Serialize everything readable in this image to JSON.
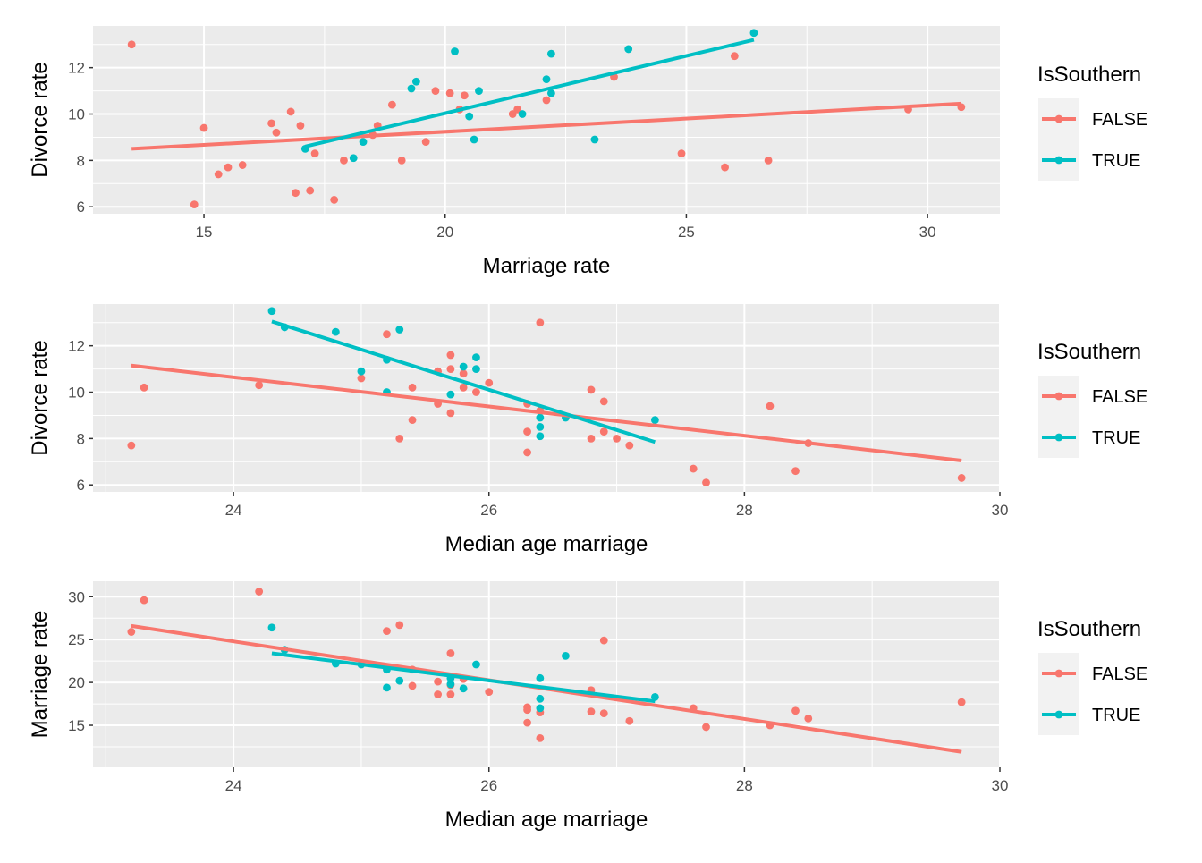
{
  "legend": {
    "title": "IsSouthern",
    "items": [
      {
        "label": "FALSE",
        "color": "#F8766D"
      },
      {
        "label": "TRUE",
        "color": "#00BFC4"
      }
    ]
  },
  "chart_data": [
    {
      "type": "scatter",
      "xlabel": "Marriage rate",
      "ylabel": "Divorce rate",
      "xlim": [
        12.7,
        31.5
      ],
      "ylim": [
        5.7,
        13.8
      ],
      "xticks": [
        15,
        20,
        25,
        30
      ],
      "yticks": [
        6,
        8,
        10,
        12
      ],
      "grid": true,
      "legend_position": "right",
      "series": [
        {
          "name": "FALSE",
          "color": "#F8766D",
          "points": [
            [
              13.5,
              13.0
            ],
            [
              14.8,
              6.1
            ],
            [
              15.0,
              9.4
            ],
            [
              15.3,
              7.4
            ],
            [
              15.5,
              7.7
            ],
            [
              15.8,
              7.8
            ],
            [
              16.4,
              9.6
            ],
            [
              16.5,
              9.2
            ],
            [
              16.8,
              10.1
            ],
            [
              16.9,
              6.6
            ],
            [
              17.0,
              9.5
            ],
            [
              17.2,
              6.7
            ],
            [
              17.3,
              8.3
            ],
            [
              17.7,
              6.3
            ],
            [
              17.9,
              8.0
            ],
            [
              18.5,
              9.1
            ],
            [
              18.6,
              9.5
            ],
            [
              18.9,
              10.4
            ],
            [
              19.1,
              8.0
            ],
            [
              19.6,
              8.8
            ],
            [
              19.8,
              11.0
            ],
            [
              20.1,
              10.9
            ],
            [
              20.3,
              10.2
            ],
            [
              20.4,
              10.8
            ],
            [
              21.4,
              10.0
            ],
            [
              21.5,
              10.2
            ],
            [
              22.1,
              10.6
            ],
            [
              23.5,
              11.6
            ],
            [
              24.9,
              8.3
            ],
            [
              25.8,
              7.7
            ],
            [
              26.0,
              12.5
            ],
            [
              26.7,
              8.0
            ],
            [
              29.6,
              10.2
            ],
            [
              30.7,
              10.3
            ]
          ],
          "fit": [
            [
              13.5,
              8.5
            ],
            [
              30.7,
              10.45
            ]
          ]
        },
        {
          "name": "TRUE",
          "color": "#00BFC4",
          "points": [
            [
              17.1,
              8.5
            ],
            [
              18.1,
              8.1
            ],
            [
              18.3,
              8.8
            ],
            [
              19.3,
              11.1
            ],
            [
              19.4,
              11.4
            ],
            [
              20.2,
              12.7
            ],
            [
              20.5,
              9.9
            ],
            [
              20.6,
              8.9
            ],
            [
              20.7,
              11.0
            ],
            [
              21.6,
              10.0
            ],
            [
              22.1,
              11.5
            ],
            [
              22.2,
              12.6
            ],
            [
              22.2,
              10.9
            ],
            [
              23.1,
              8.9
            ],
            [
              23.8,
              12.8
            ],
            [
              26.4,
              13.5
            ]
          ],
          "fit": [
            [
              17.1,
              8.6
            ],
            [
              26.4,
              13.2
            ]
          ]
        }
      ]
    },
    {
      "type": "scatter",
      "xlabel": "Median age marriage",
      "ylabel": "Divorce rate",
      "xlim": [
        22.9,
        30.0
      ],
      "ylim": [
        5.7,
        13.8
      ],
      "xticks": [
        24,
        26,
        28,
        30
      ],
      "yticks": [
        6,
        8,
        10,
        12
      ],
      "grid": true,
      "legend_position": "right",
      "series": [
        {
          "name": "FALSE",
          "color": "#F8766D",
          "points": [
            [
              23.2,
              7.7
            ],
            [
              23.3,
              10.2
            ],
            [
              24.2,
              10.3
            ],
            [
              25.0,
              10.6
            ],
            [
              25.2,
              12.5
            ],
            [
              25.3,
              8.0
            ],
            [
              25.4,
              8.8
            ],
            [
              25.4,
              10.2
            ],
            [
              25.6,
              9.5
            ],
            [
              25.6,
              10.9
            ],
            [
              25.7,
              11.6
            ],
            [
              25.7,
              11.0
            ],
            [
              25.7,
              9.1
            ],
            [
              25.8,
              10.2
            ],
            [
              25.8,
              10.8
            ],
            [
              25.9,
              10.0
            ],
            [
              26.0,
              10.4
            ],
            [
              26.3,
              7.4
            ],
            [
              26.3,
              8.3
            ],
            [
              26.3,
              9.5
            ],
            [
              26.4,
              9.2
            ],
            [
              26.4,
              13.0
            ],
            [
              26.8,
              8.0
            ],
            [
              26.8,
              10.1
            ],
            [
              26.9,
              8.3
            ],
            [
              26.9,
              9.6
            ],
            [
              27.0,
              8.0
            ],
            [
              27.1,
              7.7
            ],
            [
              27.6,
              6.7
            ],
            [
              27.7,
              6.1
            ],
            [
              28.2,
              9.4
            ],
            [
              28.4,
              6.6
            ],
            [
              28.5,
              7.8
            ],
            [
              29.7,
              6.3
            ]
          ],
          "fit": [
            [
              23.2,
              11.15
            ],
            [
              29.7,
              7.05
            ]
          ]
        },
        {
          "name": "TRUE",
          "color": "#00BFC4",
          "points": [
            [
              24.3,
              13.5
            ],
            [
              24.4,
              12.8
            ],
            [
              24.8,
              12.6
            ],
            [
              25.0,
              10.9
            ],
            [
              25.2,
              11.4
            ],
            [
              25.2,
              10.0
            ],
            [
              25.3,
              12.7
            ],
            [
              25.7,
              9.9
            ],
            [
              25.8,
              11.1
            ],
            [
              25.9,
              11.5
            ],
            [
              25.9,
              11.0
            ],
            [
              26.4,
              8.9
            ],
            [
              26.4,
              8.5
            ],
            [
              26.4,
              8.1
            ],
            [
              26.6,
              8.9
            ],
            [
              27.3,
              8.8
            ]
          ],
          "fit": [
            [
              24.3,
              13.05
            ],
            [
              27.3,
              7.85
            ]
          ]
        }
      ]
    },
    {
      "type": "scatter",
      "xlabel": "Median age marriage",
      "ylabel": "Marriage rate",
      "xlim": [
        22.9,
        30.0
      ],
      "ylim": [
        10.1,
        31.8
      ],
      "xticks": [
        24,
        26,
        28,
        30
      ],
      "yticks": [
        15,
        20,
        25,
        30
      ],
      "grid": true,
      "legend_position": "right",
      "series": [
        {
          "name": "FALSE",
          "color": "#F8766D",
          "points": [
            [
              23.2,
              25.9
            ],
            [
              23.3,
              29.6
            ],
            [
              24.2,
              30.6
            ],
            [
              25.2,
              26.0
            ],
            [
              25.3,
              26.7
            ],
            [
              25.4,
              21.5
            ],
            [
              25.4,
              19.6
            ],
            [
              25.6,
              20.1
            ],
            [
              25.6,
              18.6
            ],
            [
              25.7,
              23.4
            ],
            [
              25.7,
              19.7
            ],
            [
              25.7,
              18.6
            ],
            [
              25.8,
              20.4
            ],
            [
              26.0,
              18.9
            ],
            [
              26.3,
              17.1
            ],
            [
              26.3,
              16.8
            ],
            [
              26.3,
              15.3
            ],
            [
              26.4,
              16.5
            ],
            [
              26.4,
              13.5
            ],
            [
              26.8,
              19.1
            ],
            [
              26.8,
              16.6
            ],
            [
              26.9,
              24.9
            ],
            [
              26.9,
              16.4
            ],
            [
              27.1,
              15.5
            ],
            [
              27.6,
              17.0
            ],
            [
              27.7,
              14.8
            ],
            [
              28.2,
              15.0
            ],
            [
              28.4,
              16.7
            ],
            [
              28.5,
              15.8
            ],
            [
              29.7,
              17.7
            ]
          ],
          "fit": [
            [
              23.2,
              26.6
            ],
            [
              29.7,
              11.9
            ]
          ]
        },
        {
          "name": "TRUE",
          "color": "#00BFC4",
          "points": [
            [
              24.3,
              26.4
            ],
            [
              24.4,
              23.8
            ],
            [
              24.8,
              22.2
            ],
            [
              25.0,
              22.1
            ],
            [
              25.2,
              21.5
            ],
            [
              25.2,
              19.4
            ],
            [
              25.3,
              20.2
            ],
            [
              25.7,
              20.5
            ],
            [
              25.7,
              19.8
            ],
            [
              25.8,
              19.3
            ],
            [
              25.9,
              22.1
            ],
            [
              26.4,
              20.5
            ],
            [
              26.4,
              18.1
            ],
            [
              26.4,
              17.0
            ],
            [
              26.6,
              23.1
            ],
            [
              27.3,
              18.3
            ]
          ],
          "fit": [
            [
              24.3,
              23.4
            ],
            [
              27.3,
              17.8
            ]
          ]
        }
      ]
    }
  ]
}
